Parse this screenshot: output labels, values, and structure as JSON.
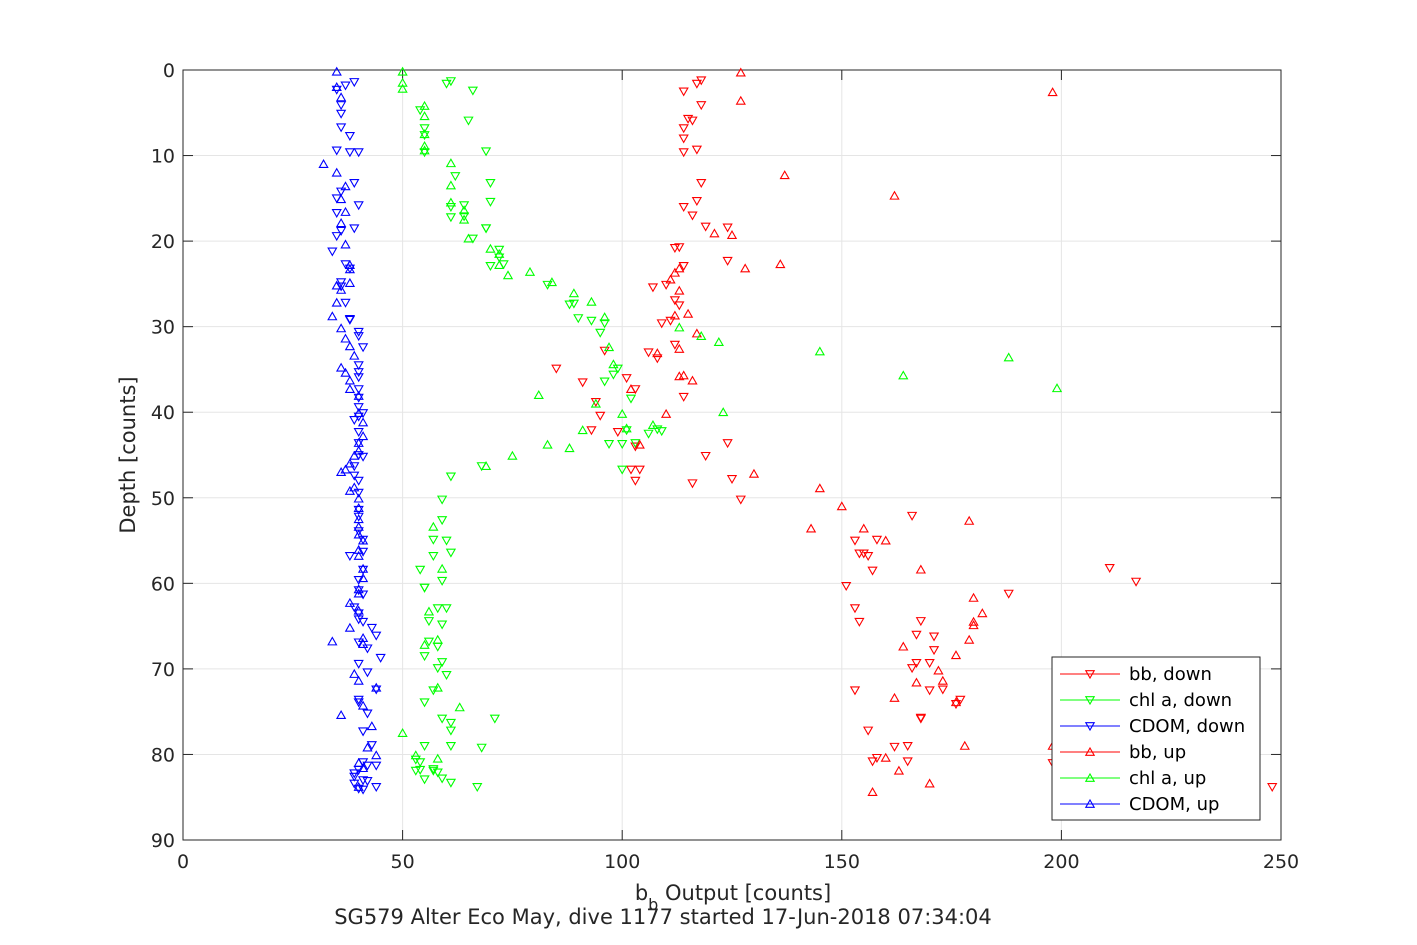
{
  "chart_data": {
    "type": "scatter",
    "xlabel_main": "b",
    "xlabel_sub": "b",
    "xlabel_rest": " Output [counts]",
    "ylabel": "Depth [counts]",
    "subtitle": "SG579 Alter Eco May, dive 1177 started 17-Jun-2018 07:34:04",
    "xlim": [
      0,
      250
    ],
    "ylim": [
      0,
      90
    ],
    "y_reversed": true,
    "grid": true,
    "x_ticks": [
      "0",
      "50",
      "100",
      "150",
      "200",
      "250"
    ],
    "y_ticks": [
      "0",
      "10",
      "20",
      "30",
      "40",
      "50",
      "60",
      "70",
      "80",
      "90"
    ],
    "legend_position": "bottom-right",
    "series": [
      {
        "name": "bb, down",
        "color": "#ff0000",
        "marker": "triangle-down",
        "x": [
          118,
          117,
          114,
          116,
          118,
          115,
          114,
          114,
          114,
          117,
          118,
          114,
          117,
          116,
          119,
          124,
          113,
          112,
          124,
          114,
          110,
          107,
          112,
          113,
          111,
          109,
          112,
          108,
          106,
          96,
          94,
          85,
          91,
          101,
          103,
          95,
          114,
          93,
          103,
          124,
          99,
          102,
          103,
          119,
          125,
          104,
          116,
          127,
          166,
          153,
          158,
          154,
          156,
          155,
          157,
          151,
          153,
          168,
          211,
          217,
          188,
          154,
          171,
          167,
          171,
          167,
          168,
          177,
          166,
          170,
          156,
          170,
          173,
          176,
          168,
          165,
          198,
          153,
          162,
          158,
          165,
          157,
          248
        ],
        "y": [
          1.2,
          1.6,
          2.5,
          5.9,
          4.1,
          5.7,
          6.8,
          8.0,
          9.6,
          9.3,
          13.2,
          16.0,
          15.3,
          17.0,
          18.3,
          18.4,
          20.7,
          20.8,
          22.3,
          22.9,
          25.1,
          25.4,
          26.9,
          27.5,
          29.3,
          29.6,
          32.1,
          33.7,
          33.0,
          32.8,
          38.8,
          34.9,
          36.5,
          36.0,
          37.3,
          40.4,
          38.2,
          42.1,
          44.0,
          43.6,
          42.3,
          46.7,
          48.0,
          45.1,
          47.8,
          46.7,
          48.3,
          50.2,
          52.1,
          55.0,
          54.9,
          56.5,
          56.8,
          56.5,
          58.5,
          60.3,
          62.9,
          64.4,
          58.2,
          59.8,
          61.2,
          64.5,
          66.2,
          66.0,
          67.8,
          69.3,
          75.8,
          73.6,
          69.9,
          69.3,
          77.2,
          72.5,
          72.4,
          74.1,
          75.7,
          79.0,
          81.0,
          72.5,
          79.1,
          80.4,
          80.8,
          80.8,
          83.8
        ]
      },
      {
        "name": "chl a, down",
        "color": "#00ff00",
        "marker": "triangle-down",
        "x": [
          61,
          60,
          66,
          54,
          65,
          55,
          55,
          69,
          55,
          70,
          62,
          64,
          61,
          61,
          64,
          70,
          69,
          66,
          69,
          72,
          73,
          70,
          72,
          83,
          88,
          89,
          93,
          90,
          96,
          95,
          99,
          98,
          96,
          102,
          101,
          108,
          109,
          106,
          103,
          100,
          100,
          97,
          68,
          61,
          59,
          59,
          57,
          60,
          61,
          57,
          54,
          59,
          55,
          55,
          58,
          60,
          56,
          59,
          56,
          58,
          59,
          58,
          55,
          60,
          57,
          59,
          55,
          61,
          61,
          55,
          54,
          71,
          57,
          54,
          61,
          57,
          58,
          59,
          61,
          53,
          53,
          55,
          68,
          67
        ],
        "y": [
          1.3,
          1.6,
          2.4,
          4.7,
          5.9,
          6.8,
          7.6,
          9.5,
          9.6,
          13.2,
          12.4,
          15.8,
          16.0,
          17.2,
          17.1,
          15.4,
          18.5,
          19.7,
          18.5,
          21.0,
          22.7,
          22.9,
          21.9,
          25.1,
          27.4,
          27.3,
          29.3,
          29.0,
          29.6,
          30.7,
          34.9,
          35.6,
          36.4,
          38.4,
          42.1,
          42.0,
          42.2,
          42.5,
          43.6,
          43.7,
          46.7,
          43.7,
          46.3,
          47.5,
          50.2,
          52.6,
          54.9,
          55.0,
          56.4,
          56.8,
          58.4,
          59.7,
          60.5,
          60.5,
          62.9,
          62.9,
          64.4,
          64.8,
          66.8,
          67.4,
          69.2,
          69.9,
          68.5,
          70.7,
          72.5,
          75.8,
          73.9,
          76.3,
          77.2,
          79.0,
          81.8,
          75.8,
          81.7,
          80.9,
          79.0,
          81.9,
          82.1,
          82.8,
          83.3,
          81.9,
          80.6,
          82.9,
          79.2,
          83.8
        ]
      },
      {
        "name": "CDOM, down",
        "color": "#0000ff",
        "marker": "triangle-down",
        "x": [
          39,
          37,
          35,
          36,
          36,
          36,
          38,
          38,
          35,
          40,
          39,
          40,
          36,
          35,
          35,
          39,
          36,
          35,
          34,
          37,
          38,
          36,
          36,
          37,
          38,
          38,
          40,
          40,
          41,
          40,
          40,
          40,
          40,
          40,
          40,
          41,
          40,
          39,
          40,
          40,
          40,
          41,
          39,
          39,
          40,
          40,
          40,
          40,
          40,
          41,
          41,
          38,
          41,
          40,
          40,
          41,
          39,
          40,
          40,
          41,
          43,
          44,
          40,
          42,
          45,
          40,
          42,
          44,
          40,
          40,
          42,
          41,
          43,
          41,
          42,
          40,
          39,
          41,
          42,
          39,
          40,
          44,
          39,
          41,
          44
        ],
        "y": [
          1.4,
          1.8,
          2.3,
          4.1,
          5.1,
          6.7,
          7.7,
          9.6,
          9.4,
          9.6,
          13.2,
          15.8,
          14.2,
          15.0,
          16.7,
          18.5,
          18.8,
          19.4,
          21.2,
          22.7,
          23.2,
          24.8,
          25.3,
          27.2,
          29.1,
          29.2,
          30.6,
          31.1,
          32.4,
          34.5,
          35.3,
          35.9,
          37.3,
          38.3,
          39.4,
          40.1,
          40.5,
          40.9,
          42.3,
          43.6,
          45.0,
          45.2,
          46.3,
          47.4,
          48.0,
          49.4,
          51.4,
          52.2,
          53.9,
          54.9,
          56.3,
          56.8,
          58.4,
          59.6,
          60.8,
          61.3,
          62.8,
          63.5,
          64.2,
          64.5,
          65.2,
          66.1,
          66.9,
          67.6,
          68.7,
          69.4,
          70.4,
          72.4,
          73.6,
          73.9,
          75.2,
          77.3,
          78.9,
          80.9,
          81.3,
          81.8,
          82.2,
          83.0,
          83.1,
          83.4,
          84.0,
          81.3,
          82.6,
          84.1,
          83.8
        ]
      },
      {
        "name": "bb, up",
        "color": "#ff0000",
        "marker": "triangle-up",
        "x": [
          127,
          198,
          127,
          137,
          162,
          121,
          125,
          128,
          136,
          112,
          113,
          111,
          113,
          115,
          112,
          117,
          113,
          108,
          114,
          102,
          104,
          113,
          110,
          116,
          130,
          145,
          150,
          143,
          160,
          179,
          168,
          180,
          182,
          180,
          179,
          155,
          172,
          176,
          173,
          180,
          176,
          167,
          164,
          162,
          160,
          157,
          163,
          170,
          178,
          198
        ],
        "y": [
          0.3,
          2.6,
          3.6,
          12.3,
          14.7,
          19.1,
          19.3,
          23.2,
          22.7,
          23.7,
          23.2,
          24.5,
          25.8,
          28.5,
          28.7,
          30.8,
          32.6,
          33.1,
          35.7,
          37.3,
          43.8,
          35.8,
          40.2,
          36.3,
          47.2,
          48.9,
          51.0,
          53.6,
          55.0,
          52.7,
          58.4,
          61.7,
          63.5,
          64.9,
          66.6,
          53.6,
          70.2,
          68.4,
          71.4,
          64.5,
          73.9,
          71.6,
          67.4,
          73.4,
          80.4,
          84.4,
          81.9,
          83.4,
          79.0,
          79.0
        ]
      },
      {
        "name": "chl a, up",
        "color": "#00ff00",
        "marker": "triangle-up",
        "x": [
          50,
          50,
          50,
          55,
          55,
          55,
          55,
          55,
          61,
          61,
          61,
          64,
          64,
          65,
          70,
          72,
          72,
          74,
          79,
          84,
          89,
          93,
          96,
          97,
          98,
          113,
          118,
          122,
          145,
          164,
          188,
          199,
          81,
          94,
          91,
          100,
          88,
          83,
          75,
          69,
          123,
          101,
          107,
          57,
          59,
          56,
          58,
          55,
          58,
          63,
          53,
          58,
          50
        ],
        "y": [
          0.2,
          1.5,
          2.2,
          4.2,
          5.4,
          7.5,
          8.9,
          9.4,
          10.9,
          13.5,
          15.5,
          16.4,
          17.5,
          19.7,
          20.9,
          21.5,
          22.8,
          24.0,
          23.6,
          24.8,
          26.1,
          27.1,
          28.9,
          32.4,
          34.4,
          30.1,
          31.1,
          31.8,
          32.9,
          35.7,
          33.6,
          37.2,
          38.0,
          39.0,
          42.1,
          40.2,
          44.2,
          43.8,
          45.1,
          46.3,
          40.0,
          41.9,
          41.5,
          53.4,
          58.3,
          63.3,
          66.6,
          67.2,
          72.2,
          74.5,
          80.1,
          80.5,
          77.5
        ]
      },
      {
        "name": "CDOM, up",
        "color": "#0000ff",
        "marker": "triangle-up",
        "x": [
          35,
          35,
          36,
          32,
          35,
          37,
          36,
          37,
          36,
          37,
          38,
          38,
          38,
          35,
          36,
          35,
          34,
          36,
          37,
          38,
          39,
          36,
          37,
          38,
          38,
          40,
          40,
          41,
          41,
          40,
          40,
          39,
          38,
          37,
          36,
          39,
          38,
          40,
          40,
          40,
          40,
          40,
          41,
          40,
          40,
          41,
          41,
          40,
          40,
          34,
          38,
          40,
          38,
          41,
          41,
          36,
          39,
          40,
          44,
          41,
          43,
          42,
          44,
          40,
          41,
          40
        ],
        "y": [
          0.2,
          2.0,
          3.2,
          11.0,
          12.0,
          13.6,
          15.1,
          16.6,
          17.9,
          20.4,
          22.8,
          23.3,
          24.9,
          25.2,
          25.7,
          27.2,
          28.8,
          30.2,
          31.4,
          32.3,
          33.4,
          34.8,
          35.4,
          36.3,
          37.3,
          38.1,
          40.1,
          41.2,
          42.8,
          43.6,
          44.5,
          45.1,
          46.0,
          46.7,
          47.0,
          48.8,
          49.2,
          50.1,
          51.2,
          52.5,
          53.4,
          54.3,
          55.0,
          56.1,
          56.8,
          58.3,
          59.4,
          60.7,
          61.2,
          66.8,
          62.3,
          63.2,
          65.2,
          66.4,
          67.1,
          75.4,
          70.6,
          71.4,
          72.2,
          74.3,
          76.7,
          79.2,
          80.1,
          81.0,
          81.6,
          83.8
        ]
      }
    ]
  }
}
